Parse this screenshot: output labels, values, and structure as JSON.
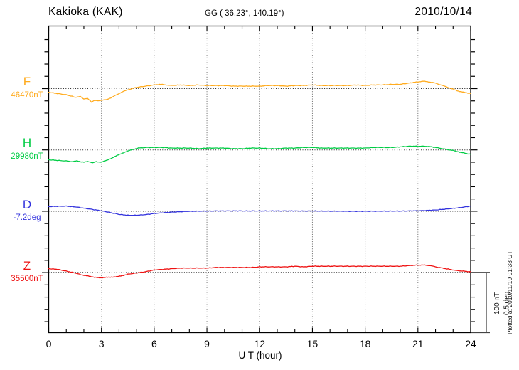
{
  "header": {
    "station": "Kakioka (KAK)",
    "coords": "GG ( 36.23°, 140.19°)",
    "date": "2010/10/14"
  },
  "xaxis": {
    "label": "U T (hour)",
    "tick_hours": [
      0,
      3,
      6,
      9,
      12,
      15,
      18,
      21,
      24
    ],
    "ticks": [
      "0",
      "3",
      "6",
      "9",
      "12",
      "15",
      "18",
      "21",
      "24"
    ],
    "grid_hours": [
      3,
      6,
      9,
      12,
      15,
      18,
      21
    ]
  },
  "scalebar": {
    "line1": "100 nT",
    "line2": "0.5 deg"
  },
  "note": "Plotted at 2010/11/19 01:33 UT",
  "colors": {
    "frame": "#000000",
    "grid": "#666666",
    "baseline": "#222222",
    "scalebar": "#444444"
  },
  "chart_data": {
    "type": "line",
    "title": "Kakioka (KAK) magnetogram 2010/10/14",
    "xlabel": "U T (hour)",
    "xlim": [
      0,
      24
    ],
    "x_ticks": [
      0,
      3,
      6,
      9,
      12,
      15,
      18,
      21,
      24
    ],
    "grid": "dotted vertical every 3 h, dotted horizontal at each component baseline",
    "scale_division": {
      "nT": 100,
      "deg": 0.5
    },
    "series": [
      {
        "name": "F",
        "baseline_label": "46470nT",
        "baseline_value": 46470,
        "unit": "nT",
        "color": "#FFAB1E",
        "points": [
          [
            0,
            46464
          ],
          [
            0.5,
            46462
          ],
          [
            1,
            46460
          ],
          [
            1.5,
            46456
          ],
          [
            1.8,
            46457
          ],
          [
            2,
            46453
          ],
          [
            2.2,
            46454
          ],
          [
            2.45,
            46448
          ],
          [
            2.6,
            46451
          ],
          [
            2.8,
            46450
          ],
          [
            3,
            46451
          ],
          [
            3.3,
            46452
          ],
          [
            3.6,
            46456
          ],
          [
            4,
            46462
          ],
          [
            4.3,
            46466
          ],
          [
            4.6,
            46469
          ],
          [
            5,
            46472
          ],
          [
            5.5,
            46474
          ],
          [
            6,
            46476
          ],
          [
            6.3,
            46477
          ],
          [
            6.7,
            46476
          ],
          [
            7,
            46475
          ],
          [
            7.5,
            46476
          ],
          [
            8,
            46475
          ],
          [
            8.5,
            46476
          ],
          [
            9,
            46475
          ],
          [
            9.5,
            46475
          ],
          [
            10,
            46475
          ],
          [
            10.5,
            46474
          ],
          [
            11,
            46474
          ],
          [
            11.5,
            46474
          ],
          [
            12,
            46474
          ],
          [
            12.5,
            46475
          ],
          [
            13,
            46475
          ],
          [
            13.5,
            46474
          ],
          [
            14,
            46475
          ],
          [
            14.5,
            46475
          ],
          [
            15,
            46476
          ],
          [
            15.5,
            46475
          ],
          [
            16,
            46475
          ],
          [
            16.5,
            46475
          ],
          [
            17,
            46475
          ],
          [
            17.5,
            46476
          ],
          [
            18,
            46475
          ],
          [
            18.5,
            46476
          ],
          [
            19,
            46476
          ],
          [
            19.5,
            46477
          ],
          [
            20,
            46477
          ],
          [
            20.5,
            46479
          ],
          [
            21,
            46481
          ],
          [
            21.3,
            46482
          ],
          [
            21.6,
            46481
          ],
          [
            22,
            46479
          ],
          [
            22.3,
            46476
          ],
          [
            22.6,
            46473
          ],
          [
            23,
            46469
          ],
          [
            23.3,
            46466
          ],
          [
            23.6,
            46464
          ],
          [
            24,
            46462
          ]
        ]
      },
      {
        "name": "H",
        "baseline_label": "29980nT",
        "baseline_value": 29980,
        "unit": "nT",
        "color": "#00CC44",
        "points": [
          [
            0,
            29964
          ],
          [
            0.5,
            29963
          ],
          [
            1,
            29962
          ],
          [
            1.3,
            29961
          ],
          [
            1.6,
            29962
          ],
          [
            2,
            29960
          ],
          [
            2.2,
            29961
          ],
          [
            2.5,
            29959
          ],
          [
            2.7,
            29961
          ],
          [
            3,
            29960
          ],
          [
            3.3,
            29963
          ],
          [
            3.6,
            29967
          ],
          [
            3.9,
            29971
          ],
          [
            4.2,
            29975
          ],
          [
            4.5,
            29978
          ],
          [
            4.8,
            29981
          ],
          [
            5.1,
            29983
          ],
          [
            5.5,
            29984
          ],
          [
            6,
            29984
          ],
          [
            6.5,
            29984
          ],
          [
            7,
            29983
          ],
          [
            7.5,
            29983
          ],
          [
            8,
            29983
          ],
          [
            8.5,
            29982
          ],
          [
            9,
            29983
          ],
          [
            9.5,
            29983
          ],
          [
            10,
            29983
          ],
          [
            10.5,
            29982
          ],
          [
            11,
            29982
          ],
          [
            11.5,
            29983
          ],
          [
            12,
            29983
          ],
          [
            12.5,
            29982
          ],
          [
            13,
            29982
          ],
          [
            13.5,
            29983
          ],
          [
            14,
            29983
          ],
          [
            14.5,
            29984
          ],
          [
            15,
            29984
          ],
          [
            15.5,
            29983
          ],
          [
            16,
            29983
          ],
          [
            16.5,
            29983
          ],
          [
            17,
            29983
          ],
          [
            17.5,
            29983
          ],
          [
            18,
            29983
          ],
          [
            18.5,
            29984
          ],
          [
            19,
            29984
          ],
          [
            19.5,
            29984
          ],
          [
            20,
            29985
          ],
          [
            20.5,
            29986
          ],
          [
            21,
            29986
          ],
          [
            21.4,
            29986
          ],
          [
            21.8,
            29985
          ],
          [
            22.2,
            29983
          ],
          [
            22.6,
            29981
          ],
          [
            23,
            29979
          ],
          [
            23.3,
            29977
          ],
          [
            23.6,
            29975
          ],
          [
            24,
            29973
          ]
        ]
      },
      {
        "name": "D",
        "baseline_label": "-7.2deg",
        "baseline_value": -7.2,
        "unit": "deg",
        "color": "#3333DD",
        "points": [
          [
            0,
            -7.162
          ],
          [
            0.5,
            -7.159
          ],
          [
            1,
            -7.158
          ],
          [
            1.5,
            -7.164
          ],
          [
            2,
            -7.174
          ],
          [
            2.5,
            -7.185
          ],
          [
            3,
            -7.196
          ],
          [
            3.5,
            -7.21
          ],
          [
            4,
            -7.225
          ],
          [
            4.5,
            -7.232
          ],
          [
            5,
            -7.232
          ],
          [
            5.5,
            -7.227
          ],
          [
            6,
            -7.218
          ],
          [
            6.5,
            -7.212
          ],
          [
            7,
            -7.207
          ],
          [
            7.5,
            -7.203
          ],
          [
            8,
            -7.2
          ],
          [
            8.5,
            -7.199
          ],
          [
            9,
            -7.198
          ],
          [
            9.5,
            -7.197
          ],
          [
            10,
            -7.197
          ],
          [
            10.5,
            -7.197
          ],
          [
            11,
            -7.197
          ],
          [
            11.5,
            -7.197
          ],
          [
            12,
            -7.197
          ],
          [
            12.5,
            -7.197
          ],
          [
            13,
            -7.197
          ],
          [
            13.5,
            -7.197
          ],
          [
            14,
            -7.197
          ],
          [
            14.5,
            -7.198
          ],
          [
            15,
            -7.197
          ],
          [
            15.5,
            -7.198
          ],
          [
            16,
            -7.199
          ],
          [
            16.5,
            -7.199
          ],
          [
            17,
            -7.2
          ],
          [
            17.5,
            -7.2
          ],
          [
            18,
            -7.2
          ],
          [
            18.5,
            -7.199
          ],
          [
            19,
            -7.199
          ],
          [
            19.5,
            -7.198
          ],
          [
            20,
            -7.198
          ],
          [
            20.5,
            -7.197
          ],
          [
            21,
            -7.196
          ],
          [
            21.5,
            -7.193
          ],
          [
            22,
            -7.189
          ],
          [
            22.5,
            -7.183
          ],
          [
            23,
            -7.176
          ],
          [
            23.5,
            -7.168
          ],
          [
            24,
            -7.157
          ]
        ]
      },
      {
        "name": "Z",
        "baseline_label": "35500nT",
        "baseline_value": 35500,
        "unit": "nT",
        "color": "#EE1111",
        "points": [
          [
            0,
            35506
          ],
          [
            0.5,
            35505
          ],
          [
            1,
            35502
          ],
          [
            1.5,
            35499
          ],
          [
            2,
            35495
          ],
          [
            2.3,
            35494
          ],
          [
            2.6,
            35492
          ],
          [
            2.9,
            35491
          ],
          [
            3.2,
            35492
          ],
          [
            3.5,
            35492
          ],
          [
            3.8,
            35493
          ],
          [
            4.1,
            35494
          ],
          [
            4.5,
            35497
          ],
          [
            5,
            35499
          ],
          [
            5.5,
            35501
          ],
          [
            6,
            35504
          ],
          [
            6.5,
            35505
          ],
          [
            7,
            35506
          ],
          [
            7.5,
            35507
          ],
          [
            8,
            35507
          ],
          [
            8.5,
            35507
          ],
          [
            9,
            35507
          ],
          [
            9.5,
            35508
          ],
          [
            10,
            35508
          ],
          [
            10.5,
            35508
          ],
          [
            11,
            35508
          ],
          [
            11.5,
            35508
          ],
          [
            12,
            35509
          ],
          [
            12.5,
            35509
          ],
          [
            13,
            35509
          ],
          [
            13.5,
            35509
          ],
          [
            14,
            35510
          ],
          [
            14.5,
            35509
          ],
          [
            15,
            35510
          ],
          [
            15.5,
            35510
          ],
          [
            16,
            35510
          ],
          [
            16.5,
            35510
          ],
          [
            17,
            35510
          ],
          [
            17.5,
            35510
          ],
          [
            18,
            35510
          ],
          [
            18.5,
            35510
          ],
          [
            19,
            35510
          ],
          [
            19.5,
            35510
          ],
          [
            20,
            35510
          ],
          [
            20.5,
            35511
          ],
          [
            21,
            35512
          ],
          [
            21.3,
            35512
          ],
          [
            21.7,
            35511
          ],
          [
            22,
            35509
          ],
          [
            22.4,
            35507
          ],
          [
            22.8,
            35505
          ],
          [
            23.2,
            35503
          ],
          [
            23.6,
            35502
          ],
          [
            24,
            35501
          ]
        ]
      }
    ]
  }
}
